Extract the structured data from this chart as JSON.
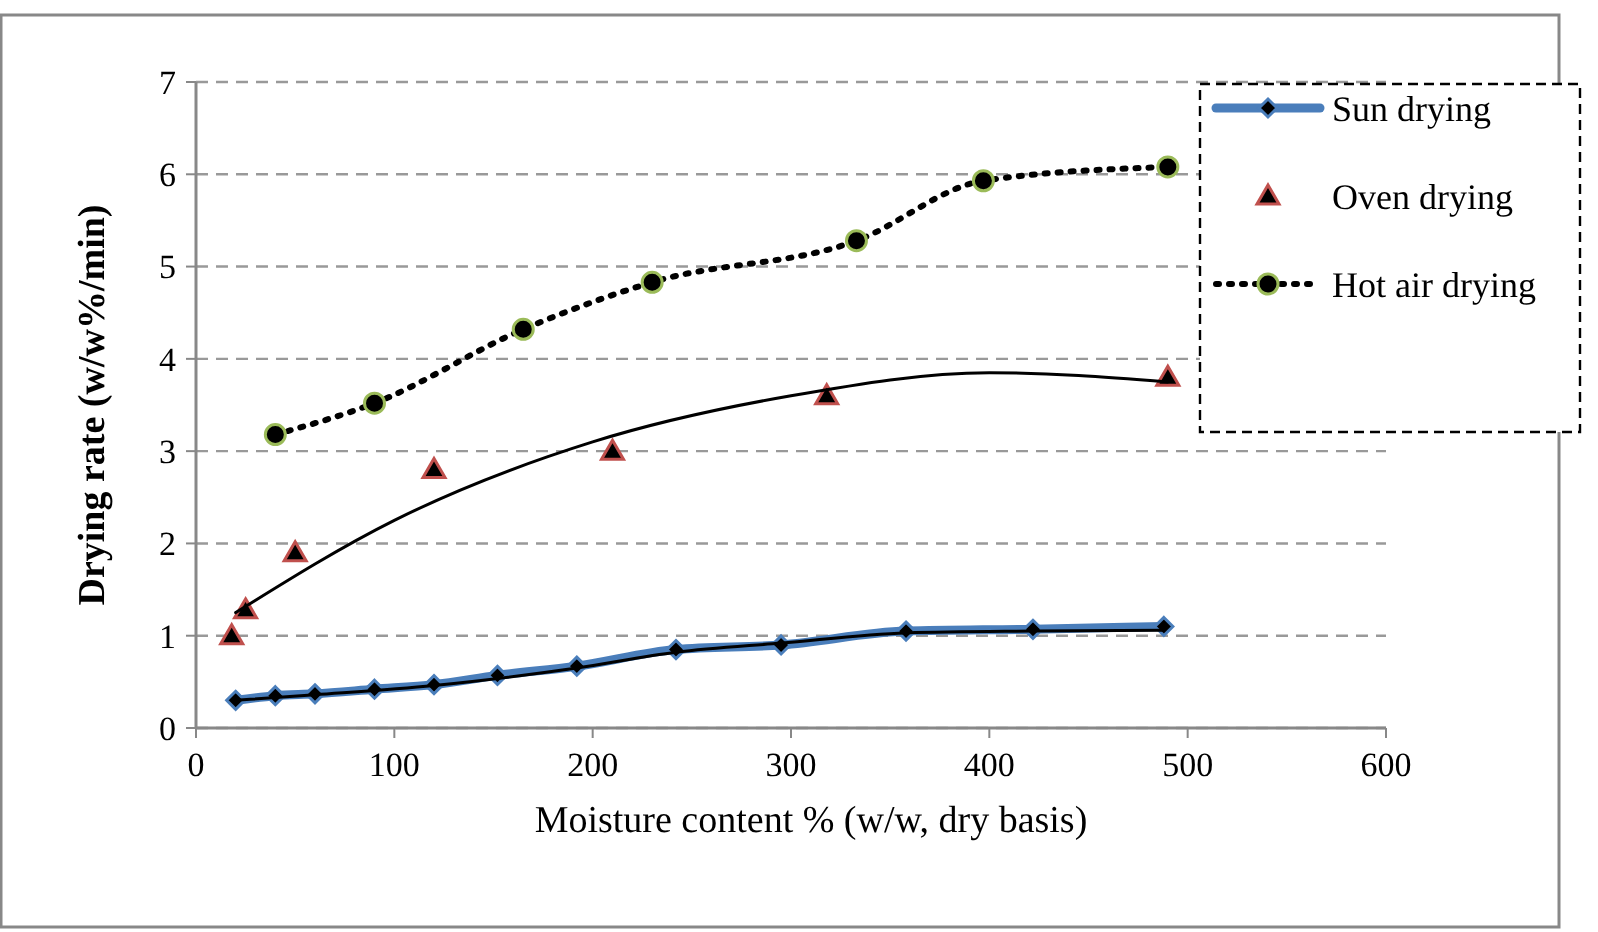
{
  "chart_data": {
    "type": "line",
    "xlabel": "Moisture content % (w/w, dry basis)",
    "ylabel": "Drying rate (w/w%/min)",
    "xlim": [
      0,
      600
    ],
    "xticks": [
      0,
      100,
      200,
      300,
      400,
      500,
      600
    ],
    "ylim": [
      0,
      7
    ],
    "yticks": [
      0,
      1,
      2,
      3,
      4,
      5,
      6,
      7
    ],
    "grid": "y",
    "legend": "top right",
    "series": [
      {
        "name": "Sun drying",
        "color": "#4a7ebb",
        "marker": "diamond",
        "line_style": "solid",
        "x": [
          20,
          40,
          60,
          90,
          120,
          152,
          192,
          242,
          295,
          358,
          422,
          488
        ],
        "values": [
          0.3,
          0.35,
          0.37,
          0.42,
          0.47,
          0.57,
          0.67,
          0.85,
          0.9,
          1.05,
          1.07,
          1.1
        ]
      },
      {
        "color": "#000000",
        "marker": "none",
        "line_style": "solid",
        "x": [
          20,
          60,
          120,
          192,
          242,
          295,
          358,
          422,
          488
        ],
        "values": [
          0.3,
          0.36,
          0.46,
          0.65,
          0.82,
          0.92,
          1.03,
          1.05,
          1.06
        ]
      },
      {
        "name": "Oven drying",
        "type": "scatter",
        "color": "#c0504d",
        "marker": "triangle",
        "x": [
          18,
          25,
          50,
          120,
          210,
          318,
          490
        ],
        "values": [
          1.0,
          1.28,
          1.9,
          2.8,
          3.0,
          3.6,
          3.8
        ]
      },
      {
        "color": "#000000",
        "marker": "none",
        "line_style": "solid",
        "x": [
          20,
          100,
          200,
          300,
          400,
          490
        ],
        "values": [
          1.25,
          2.25,
          3.1,
          3.6,
          3.85,
          3.75
        ]
      },
      {
        "name": "Hot air drying",
        "color": "#9bbb59",
        "marker": "circle",
        "line_style": "dotted",
        "x": [
          40,
          90,
          165,
          230,
          333,
          397,
          490
        ],
        "values": [
          3.18,
          3.52,
          4.32,
          4.83,
          5.28,
          5.93,
          6.08
        ]
      }
    ]
  }
}
